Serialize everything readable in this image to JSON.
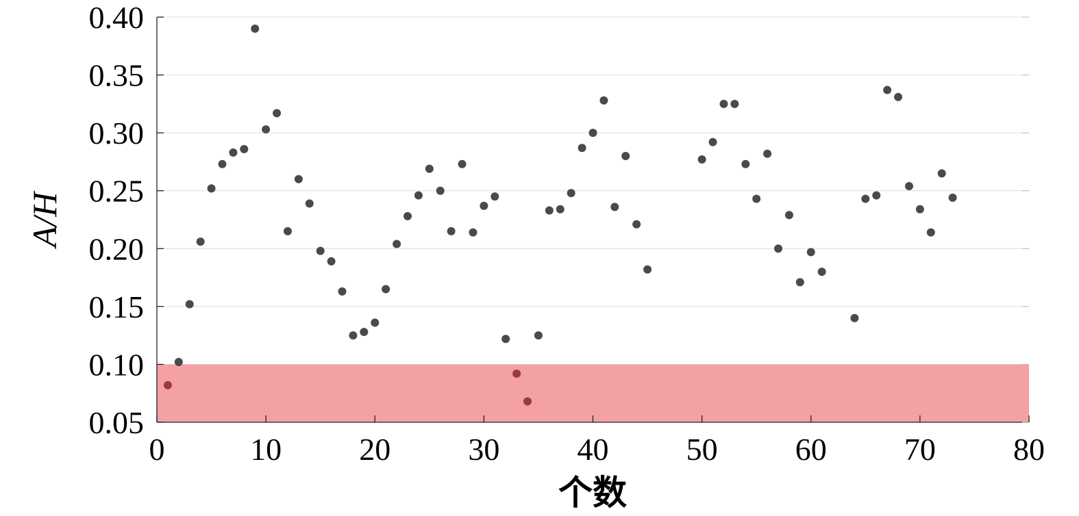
{
  "chart_data": {
    "type": "scatter",
    "xlabel": "个数",
    "ylabel": "A/H",
    "xlim": [
      0,
      80
    ],
    "ylim": [
      0.05,
      0.4
    ],
    "xticks": [
      0,
      10,
      20,
      30,
      40,
      50,
      60,
      70,
      80
    ],
    "yticks": [
      0.05,
      0.1,
      0.15,
      0.2,
      0.25,
      0.3,
      0.35,
      0.4
    ],
    "xtick_labels": [
      "0",
      "10",
      "20",
      "30",
      "40",
      "50",
      "60",
      "70",
      "80"
    ],
    "ytick_labels": [
      "0.05",
      "0.10",
      "0.15",
      "0.20",
      "0.25",
      "0.30",
      "0.35",
      "0.40"
    ],
    "grid": "horizontal",
    "highlight_band": {
      "y_from": 0.05,
      "y_to": 0.1,
      "color": "#f4a1a3"
    },
    "point_color": "#4a4a4a",
    "highlight_point_color": "#9b3a3a",
    "points": [
      [
        1,
        0.082
      ],
      [
        2,
        0.102
      ],
      [
        3,
        0.152
      ],
      [
        4,
        0.206
      ],
      [
        5,
        0.252
      ],
      [
        6,
        0.273
      ],
      [
        7,
        0.283
      ],
      [
        8,
        0.286
      ],
      [
        9,
        0.39
      ],
      [
        10,
        0.303
      ],
      [
        11,
        0.317
      ],
      [
        12,
        0.215
      ],
      [
        13,
        0.26
      ],
      [
        14,
        0.239
      ],
      [
        15,
        0.198
      ],
      [
        16,
        0.189
      ],
      [
        17,
        0.163
      ],
      [
        18,
        0.125
      ],
      [
        19,
        0.128
      ],
      [
        20,
        0.136
      ],
      [
        21,
        0.165
      ],
      [
        22,
        0.204
      ],
      [
        23,
        0.228
      ],
      [
        24,
        0.246
      ],
      [
        25,
        0.269
      ],
      [
        26,
        0.25
      ],
      [
        27,
        0.215
      ],
      [
        28,
        0.273
      ],
      [
        29,
        0.214
      ],
      [
        30,
        0.237
      ],
      [
        31,
        0.245
      ],
      [
        32,
        0.122
      ],
      [
        33,
        0.092
      ],
      [
        34,
        0.068
      ],
      [
        35,
        0.125
      ],
      [
        36,
        0.233
      ],
      [
        37,
        0.234
      ],
      [
        38,
        0.248
      ],
      [
        39,
        0.287
      ],
      [
        40,
        0.3
      ],
      [
        41,
        0.328
      ],
      [
        42,
        0.236
      ],
      [
        43,
        0.28
      ],
      [
        44,
        0.221
      ],
      [
        45,
        0.182
      ],
      [
        50,
        0.277
      ],
      [
        51,
        0.292
      ],
      [
        52,
        0.325
      ],
      [
        53,
        0.325
      ],
      [
        54,
        0.273
      ],
      [
        55,
        0.243
      ],
      [
        56,
        0.282
      ],
      [
        57,
        0.2
      ],
      [
        58,
        0.229
      ],
      [
        59,
        0.171
      ],
      [
        60,
        0.197
      ],
      [
        61,
        0.18
      ],
      [
        64,
        0.14
      ],
      [
        65,
        0.243
      ],
      [
        66,
        0.246
      ],
      [
        67,
        0.337
      ],
      [
        68,
        0.331
      ],
      [
        69,
        0.254
      ],
      [
        70,
        0.234
      ],
      [
        71,
        0.214
      ],
      [
        72,
        0.265
      ],
      [
        73,
        0.244
      ]
    ]
  }
}
